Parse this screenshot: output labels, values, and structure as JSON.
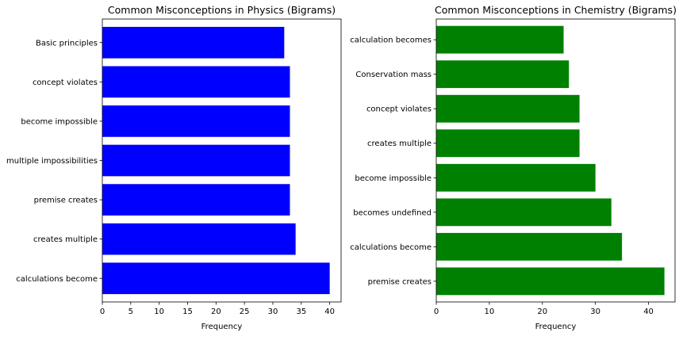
{
  "chart_data": [
    {
      "type": "bar",
      "orientation": "horizontal",
      "title": "Common Misconceptions in Physics (Bigrams)",
      "xlabel": "Frequency",
      "ylabel": "",
      "categories": [
        "calculations become",
        "creates multiple",
        "premise creates",
        "multiple impossibilities",
        "become impossible",
        "concept violates",
        "Basic principles"
      ],
      "values": [
        40,
        34,
        33,
        33,
        33,
        33,
        32
      ],
      "xlim": [
        0,
        42
      ],
      "xticks": [
        0,
        5,
        10,
        15,
        20,
        25,
        30,
        35,
        40
      ],
      "color": "#0000ff",
      "grid": false
    },
    {
      "type": "bar",
      "orientation": "horizontal",
      "title": "Common Misconceptions in Chemistry (Bigrams)",
      "xlabel": "Frequency",
      "ylabel": "",
      "categories": [
        "premise creates",
        "calculations become",
        "becomes undefined",
        "become impossible",
        "creates multiple",
        "concept violates",
        "Conservation mass",
        "calculation becomes"
      ],
      "values": [
        43,
        35,
        33,
        30,
        27,
        27,
        25,
        24
      ],
      "xlim": [
        0,
        45
      ],
      "xticks": [
        0,
        10,
        20,
        30,
        40
      ],
      "color": "#008000",
      "grid": false
    }
  ]
}
